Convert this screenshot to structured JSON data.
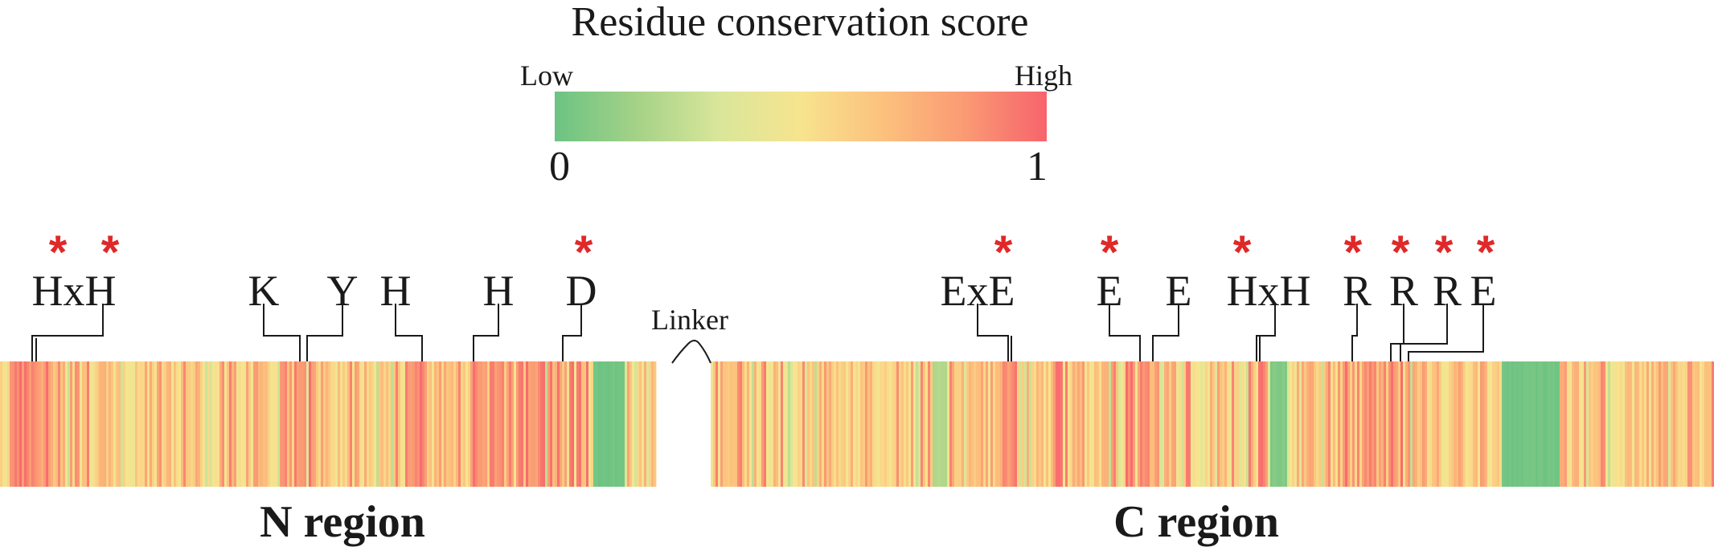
{
  "legend": {
    "title": "Residue conservation score",
    "low_label": "Low",
    "high_label": "High",
    "min_value": "0",
    "max_value": "1",
    "colors": [
      "#6cc383",
      "#a4d287",
      "#d9e69a",
      "#f7e48f",
      "#fcc17d",
      "#fa9a74",
      "#f7646c"
    ]
  },
  "linker_label": "Linker",
  "regions": {
    "n_label": "N region",
    "c_label": "C region"
  },
  "residues": [
    {
      "label": "HxH",
      "starred": true,
      "star_count": 2
    },
    {
      "label": "K",
      "starred": false
    },
    {
      "label": "Y",
      "starred": false
    },
    {
      "label": "H",
      "starred": false
    },
    {
      "label": "H",
      "starred": false
    },
    {
      "label": "D",
      "starred": true
    },
    {
      "label": "ExE",
      "starred": true
    },
    {
      "label": "E",
      "starred": true
    },
    {
      "label": "E",
      "starred": false
    },
    {
      "label": "HxH",
      "starred": true
    },
    {
      "label": "R",
      "starred": true
    },
    {
      "label": "R",
      "starred": true
    },
    {
      "label": "R",
      "starred": true
    },
    {
      "label": "E",
      "starred": true
    }
  ],
  "star_symbol": "*"
}
